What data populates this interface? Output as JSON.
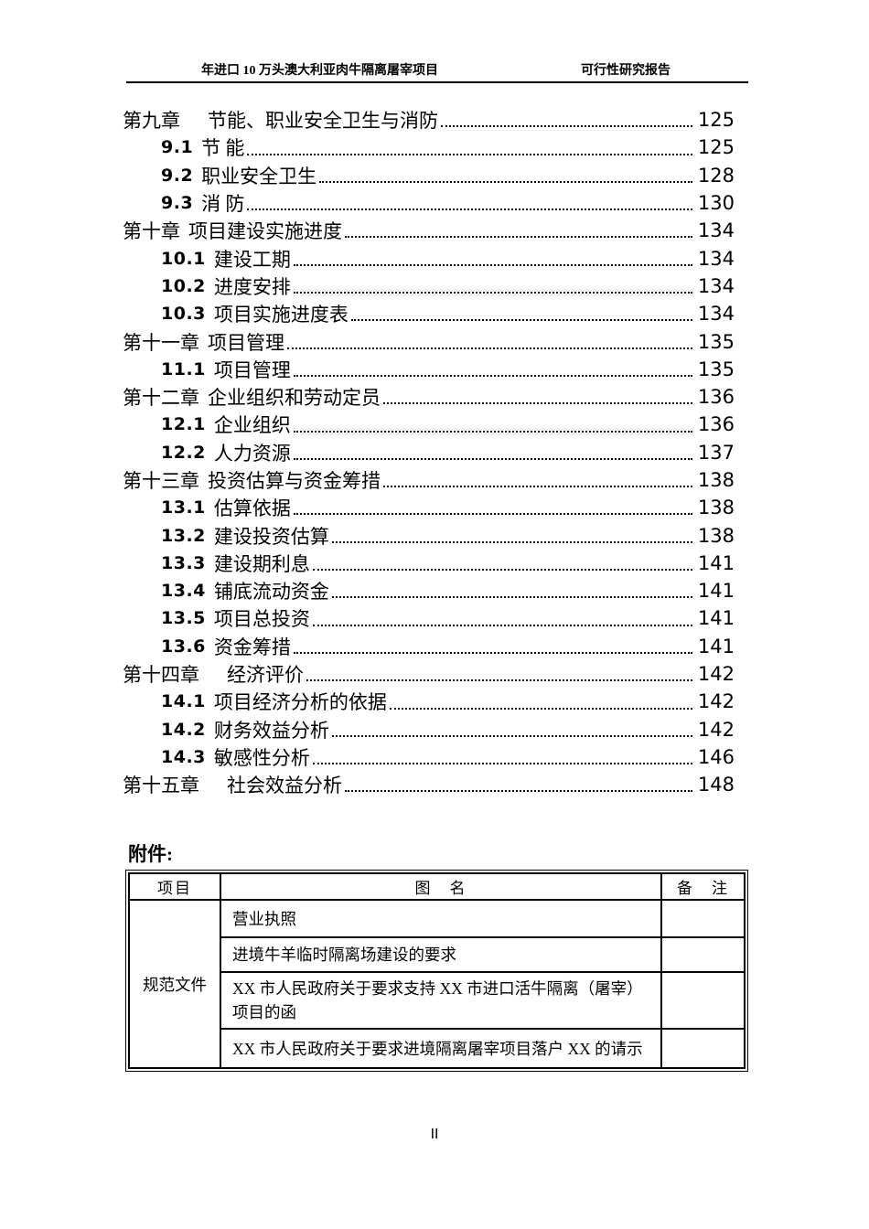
{
  "colors": {
    "text": "#000000",
    "background": "#ffffff"
  },
  "header": {
    "left_title": "年进口 10 万头澳大利亚肉牛隔离屠宰项目",
    "right_title": "可行性研究报告"
  },
  "toc": {
    "entries": [
      {
        "num": "第九章",
        "text": "　节能、职业安全卫生与消防",
        "page": "125",
        "level": 1
      },
      {
        "num": "9.1",
        "text": "节 能",
        "page": "125",
        "level": 2
      },
      {
        "num": "9.2",
        "text": "职业安全卫生",
        "page": "128",
        "level": 2
      },
      {
        "num": "9.3",
        "text": "消 防",
        "page": "130",
        "level": 2
      },
      {
        "num": "第十章",
        "text": "项目建设实施进度",
        "page": "134",
        "level": 1
      },
      {
        "num": "10.1",
        "text": "建设工期",
        "page": "134",
        "level": 2
      },
      {
        "num": "10.2",
        "text": "进度安排",
        "page": "134",
        "level": 2
      },
      {
        "num": "10.3",
        "text": "项目实施进度表",
        "page": "134",
        "level": 2
      },
      {
        "num": "第十一章",
        "text": "项目管理",
        "page": "135",
        "level": 1
      },
      {
        "num": "11.1",
        "text": "项目管理",
        "page": "135",
        "level": 2
      },
      {
        "num": "第十二章",
        "text": "企业组织和劳动定员",
        "page": "136",
        "level": 1
      },
      {
        "num": "12.1",
        "text": "企业组织",
        "page": "136",
        "level": 2
      },
      {
        "num": "12.2",
        "text": "人力资源",
        "page": "137",
        "level": 2
      },
      {
        "num": "第十三章",
        "text": "投资估算与资金筹措",
        "page": "138",
        "level": 1
      },
      {
        "num": "13.1",
        "text": "估算依据",
        "page": "138",
        "level": 2
      },
      {
        "num": "13.2",
        "text": "建设投资估算",
        "page": "138",
        "level": 2
      },
      {
        "num": "13.3",
        "text": "建设期利息",
        "page": "141",
        "level": 2
      },
      {
        "num": "13.4",
        "text": "铺底流动资金",
        "page": "141",
        "level": 2
      },
      {
        "num": "13.5",
        "text": "项目总投资",
        "page": "141",
        "level": 2
      },
      {
        "num": "13.6",
        "text": "资金筹措",
        "page": "141",
        "level": 2
      },
      {
        "num": "第十四章",
        "text": "　经济评价",
        "page": "142",
        "level": 1
      },
      {
        "num": "14.1",
        "text": "项目经济分析的依据",
        "page": "142",
        "level": 2
      },
      {
        "num": "14.2",
        "text": "财务效益分析",
        "page": "142",
        "level": 2
      },
      {
        "num": "14.3",
        "text": "敏感性分析",
        "page": "146",
        "level": 2
      },
      {
        "num": "第十五章",
        "text": "　社会效益分析",
        "page": "148",
        "level": 1
      }
    ]
  },
  "attachments": {
    "label": "附件:",
    "table": {
      "headers": [
        "项目",
        "图　名",
        "备　注"
      ],
      "category": "规范文件",
      "rows": [
        "营业执照",
        "进境牛羊临时隔离场建设的要求",
        "XX 市人民政府关于要求支持 XX 市进口活牛隔离（屠宰）项目的函",
        "XX 市人民政府关于要求进境隔离屠宰项目落户 XX 的请示"
      ],
      "remarks": [
        "",
        "",
        "",
        ""
      ]
    }
  },
  "footer": {
    "page_number": "II"
  }
}
